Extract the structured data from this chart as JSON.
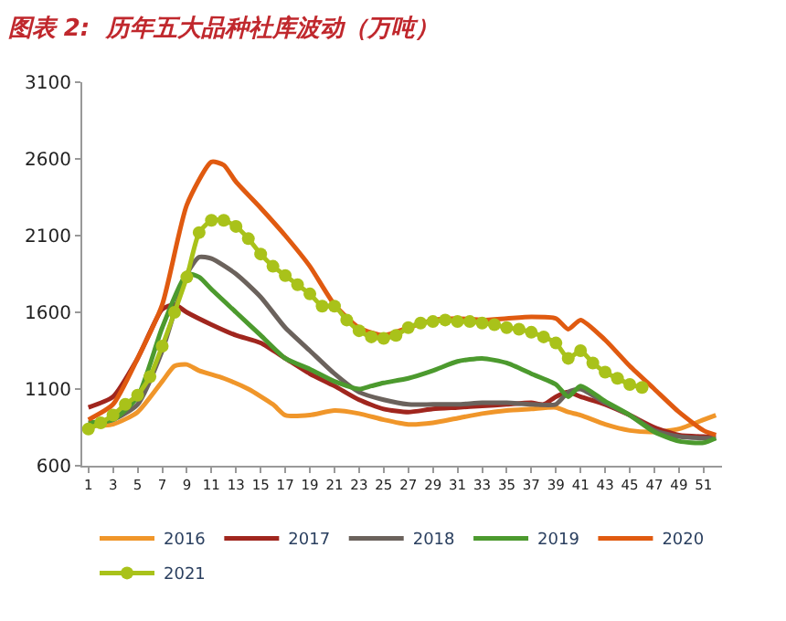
{
  "chart_data": {
    "type": "line",
    "title": "图表 2:  历年五大品种社库波动（万吨）",
    "xlim": [
      0.5,
      52.5
    ],
    "xticks": [
      1,
      3,
      5,
      7,
      9,
      11,
      13,
      15,
      17,
      19,
      21,
      23,
      25,
      27,
      29,
      31,
      33,
      35,
      37,
      39,
      41,
      43,
      45,
      47,
      49,
      51
    ],
    "ylim": [
      600,
      3100
    ],
    "yticks": [
      600,
      1100,
      1600,
      2100,
      2600,
      3100
    ],
    "legend": "bottom",
    "line_style": "solid",
    "series": [
      {
        "name": "2016",
        "color": "#f0962a",
        "marker": "none",
        "x": [
          1,
          3,
          5,
          7,
          8,
          9,
          10,
          12,
          14,
          16,
          17,
          19,
          21,
          23,
          25,
          27,
          29,
          31,
          33,
          35,
          37,
          39,
          40,
          41,
          43,
          45,
          47,
          49,
          51,
          52
        ],
        "values": [
          860,
          870,
          950,
          1150,
          1250,
          1260,
          1220,
          1170,
          1100,
          1000,
          930,
          930,
          960,
          940,
          900,
          870,
          880,
          910,
          940,
          960,
          970,
          980,
          950,
          930,
          870,
          830,
          820,
          840,
          900,
          930
        ]
      },
      {
        "name": "2017",
        "color": "#a0261e",
        "marker": "none",
        "x": [
          1,
          3,
          5,
          7,
          8,
          9,
          11,
          13,
          15,
          17,
          19,
          21,
          23,
          25,
          27,
          29,
          31,
          33,
          35,
          37,
          38,
          39,
          40,
          41,
          43,
          45,
          47,
          49,
          51,
          52
        ],
        "values": [
          980,
          1050,
          1300,
          1620,
          1650,
          1600,
          1520,
          1450,
          1400,
          1300,
          1200,
          1120,
          1030,
          970,
          950,
          970,
          980,
          990,
          1000,
          1010,
          1000,
          1050,
          1080,
          1050,
          1000,
          930,
          850,
          800,
          790,
          790
        ]
      },
      {
        "name": "2018",
        "color": "#6b625c",
        "marker": "none",
        "x": [
          1,
          3,
          5,
          7,
          9,
          10,
          11,
          13,
          15,
          17,
          19,
          21,
          23,
          25,
          27,
          29,
          31,
          33,
          35,
          37,
          39,
          40,
          41,
          43,
          45,
          47,
          49,
          51,
          52
        ],
        "values": [
          880,
          900,
          1000,
          1350,
          1850,
          1960,
          1950,
          1850,
          1700,
          1500,
          1350,
          1200,
          1080,
          1030,
          1000,
          1000,
          1000,
          1010,
          1010,
          1000,
          1000,
          1080,
          1100,
          1010,
          930,
          830,
          790,
          780,
          780
        ]
      },
      {
        "name": "2019",
        "color": "#4c9a2e",
        "marker": "none",
        "x": [
          1,
          3,
          5,
          7,
          9,
          10,
          11,
          13,
          15,
          17,
          19,
          21,
          23,
          24,
          25,
          27,
          29,
          31,
          33,
          35,
          37,
          39,
          40,
          41,
          43,
          45,
          47,
          49,
          51,
          52
        ],
        "values": [
          880,
          900,
          1050,
          1500,
          1850,
          1830,
          1750,
          1600,
          1450,
          1300,
          1230,
          1150,
          1100,
          1120,
          1140,
          1170,
          1220,
          1280,
          1300,
          1270,
          1200,
          1130,
          1050,
          1120,
          1020,
          930,
          820,
          760,
          750,
          780
        ]
      },
      {
        "name": "2020",
        "color": "#e05a10",
        "marker": "none",
        "x": [
          1,
          3,
          5,
          7,
          9,
          11,
          12,
          13,
          15,
          17,
          19,
          21,
          23,
          25,
          27,
          29,
          31,
          33,
          35,
          37,
          39,
          40,
          41,
          43,
          45,
          47,
          49,
          51,
          52
        ],
        "values": [
          900,
          1000,
          1300,
          1650,
          2300,
          2580,
          2560,
          2450,
          2280,
          2100,
          1900,
          1650,
          1500,
          1450,
          1500,
          1550,
          1560,
          1550,
          1560,
          1570,
          1560,
          1490,
          1550,
          1420,
          1250,
          1100,
          950,
          830,
          800
        ]
      },
      {
        "name": "2021",
        "color": "#a9c21a",
        "marker": "circle",
        "x": [
          1,
          2,
          3,
          4,
          5,
          6,
          7,
          8,
          9,
          10,
          11,
          12,
          13,
          14,
          15,
          16,
          17,
          18,
          19,
          20,
          21,
          22,
          23,
          24,
          25,
          26,
          27,
          28,
          29,
          30,
          31,
          32,
          33,
          34,
          35,
          36,
          37,
          38,
          39,
          40,
          41,
          42,
          43,
          44,
          45,
          46
        ],
        "values": [
          840,
          880,
          930,
          1000,
          1060,
          1180,
          1380,
          1600,
          1830,
          2120,
          2200,
          2200,
          2160,
          2080,
          1980,
          1900,
          1840,
          1780,
          1720,
          1640,
          1640,
          1550,
          1480,
          1440,
          1430,
          1450,
          1500,
          1530,
          1540,
          1550,
          1540,
          1540,
          1530,
          1520,
          1500,
          1490,
          1470,
          1440,
          1400,
          1300,
          1350,
          1270,
          1210,
          1170,
          1130,
          1110
        ]
      }
    ]
  }
}
